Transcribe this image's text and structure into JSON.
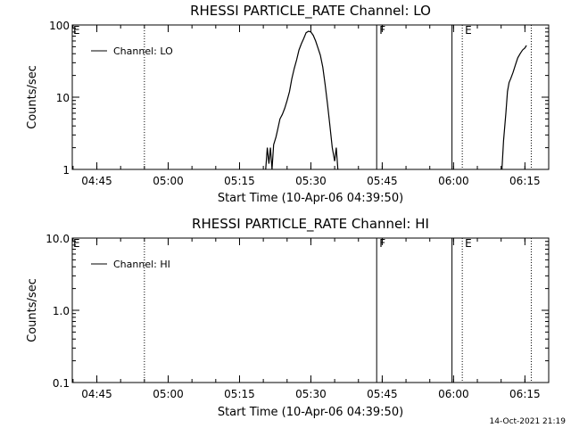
{
  "footer": {
    "date_stamp": "14-Oct-2021 21:19"
  },
  "chart_data": [
    {
      "type": "line",
      "title": "RHESSI PARTICLE_RATE Channel: LO",
      "xlabel": "Start Time (10-Apr-06 04:39:50)",
      "ylabel": "Counts/sec",
      "y_scale": "log",
      "xlim": [
        "04:39:50",
        "06:20:00"
      ],
      "ylim": [
        1,
        100
      ],
      "x_ticks": [
        "04:45",
        "05:00",
        "05:15",
        "05:30",
        "05:45",
        "06:00",
        "06:15"
      ],
      "y_ticks": [
        "1",
        "10",
        "100"
      ],
      "legend": {
        "position": "top-left",
        "entries": [
          "Channel: LO"
        ]
      },
      "grid": false,
      "series": [
        {
          "name": "Channel: LO",
          "segments": [
            [
              [
                "05:20:30",
                1
              ],
              [
                "05:20:50",
                2
              ],
              [
                "05:21:10",
                1.2
              ],
              [
                "05:21:30",
                2
              ],
              [
                "05:21:50",
                1
              ],
              [
                "05:22:10",
                2.2
              ],
              [
                "05:22:40",
                2.8
              ],
              [
                "05:23:00",
                3.5
              ],
              [
                "05:23:30",
                5
              ],
              [
                "05:24:00",
                5.8
              ],
              [
                "05:24:30",
                7
              ],
              [
                "05:25:00",
                9
              ],
              [
                "05:25:30",
                12
              ],
              [
                "05:26:00",
                18
              ],
              [
                "05:26:30",
                25
              ],
              [
                "05:27:00",
                33
              ],
              [
                "05:27:30",
                45
              ],
              [
                "05:28:00",
                55
              ],
              [
                "05:28:30",
                65
              ],
              [
                "05:29:00",
                78
              ],
              [
                "05:29:30",
                82
              ],
              [
                "05:30:00",
                80
              ],
              [
                "05:30:30",
                72
              ],
              [
                "05:31:00",
                60
              ],
              [
                "05:31:30",
                48
              ],
              [
                "05:32:00",
                38
              ],
              [
                "05:32:30",
                26
              ],
              [
                "05:33:00",
                15
              ],
              [
                "05:33:30",
                8
              ],
              [
                "05:34:00",
                4
              ],
              [
                "05:34:30",
                2
              ],
              [
                "05:35:00",
                1.3
              ],
              [
                "05:35:20",
                2
              ],
              [
                "05:35:40",
                1
              ]
            ],
            [
              [
                "06:10:10",
                1
              ],
              [
                "06:10:30",
                2.5
              ],
              [
                "06:11:00",
                6
              ],
              [
                "06:11:20",
                12
              ],
              [
                "06:11:40",
                16
              ],
              [
                "06:12:00",
                18
              ],
              [
                "06:12:30",
                22
              ],
              [
                "06:13:00",
                28
              ],
              [
                "06:13:30",
                35
              ],
              [
                "06:14:00",
                40
              ],
              [
                "06:14:30",
                45
              ],
              [
                "06:15:00",
                48
              ],
              [
                "06:15:20",
                52
              ]
            ]
          ]
        }
      ],
      "events": [
        {
          "time": "04:55:00",
          "style": "dotted",
          "label": ""
        },
        {
          "time": "05:43:50",
          "style": "solid",
          "label": "F"
        },
        {
          "time": "05:59:40",
          "style": "solid",
          "label": ""
        },
        {
          "time": "06:01:50",
          "style": "dotted",
          "label": "E"
        },
        {
          "time": "06:16:20",
          "style": "dotted",
          "label": ""
        }
      ],
      "left_edge_label": "E"
    },
    {
      "type": "line",
      "title": "RHESSI PARTICLE_RATE Channel: HI",
      "xlabel": "Start Time (10-Apr-06 04:39:50)",
      "ylabel": "Counts/sec",
      "y_scale": "log",
      "xlim": [
        "04:39:50",
        "06:20:00"
      ],
      "ylim": [
        0.1,
        10
      ],
      "x_ticks": [
        "04:45",
        "05:00",
        "05:15",
        "05:30",
        "05:45",
        "06:00",
        "06:15"
      ],
      "y_ticks": [
        "0.1",
        "1.0",
        "10.0"
      ],
      "legend": {
        "position": "top-left",
        "entries": [
          "Channel: HI"
        ]
      },
      "grid": false,
      "series": [
        {
          "name": "Channel: HI",
          "segments": []
        }
      ],
      "events": [
        {
          "time": "04:55:00",
          "style": "dotted",
          "label": ""
        },
        {
          "time": "05:43:50",
          "style": "solid",
          "label": "F"
        },
        {
          "time": "05:59:40",
          "style": "solid",
          "label": ""
        },
        {
          "time": "06:01:50",
          "style": "dotted",
          "label": "E"
        },
        {
          "time": "06:16:20",
          "style": "dotted",
          "label": ""
        }
      ],
      "left_edge_label": "E"
    }
  ]
}
